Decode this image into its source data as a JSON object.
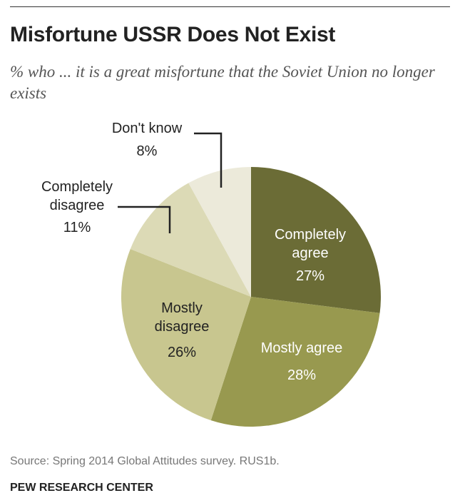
{
  "header": {
    "title": "Misfortune USSR Does Not Exist",
    "subtitle": "% who ... it is a great misfortune that the Soviet Union no longer exists"
  },
  "footer": {
    "source": "Source: Spring 2014 Global Attitudes survey. RUS1b.",
    "org": "PEW RESEARCH CENTER"
  },
  "chart_data": {
    "type": "pie",
    "title": "Misfortune USSR Does Not Exist",
    "subtitle": "% who ... it is a great misfortune that the Soviet Union no longer exists",
    "start": "12 o'clock, clockwise",
    "slices": [
      {
        "label": "Completely agree",
        "value": 27,
        "value_label": "27%",
        "color": "#6b6c36",
        "text_color": "#ffffff"
      },
      {
        "label": "Mostly agree",
        "value": 28,
        "value_label": "28%",
        "color": "#98994f",
        "text_color": "#ffffff"
      },
      {
        "label": "Mostly disagree",
        "value": 26,
        "value_label": "26%",
        "color": "#c8c68f",
        "text_color": "#222222"
      },
      {
        "label": "Completely disagree",
        "value": 11,
        "value_label": "11%",
        "color": "#dcdab6",
        "text_color": "#222222"
      },
      {
        "label": "Don't know",
        "value": 8,
        "value_label": "8%",
        "color": "#eceada",
        "text_color": "#222222"
      }
    ]
  }
}
